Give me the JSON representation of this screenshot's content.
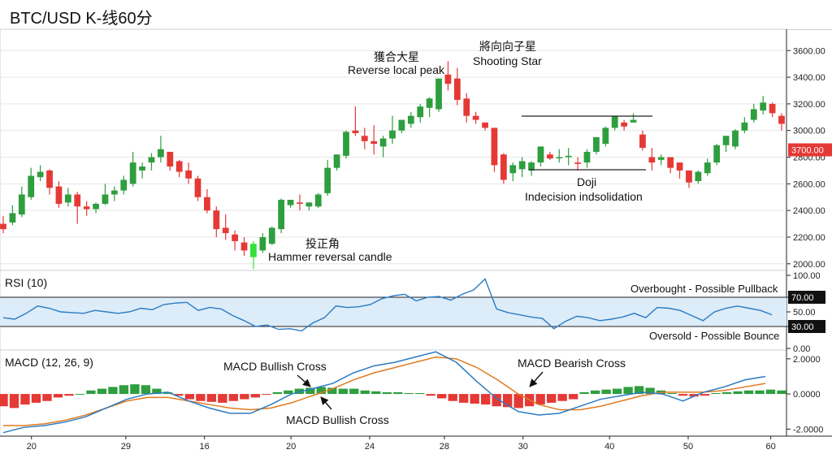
{
  "title": "BTC/USD K-线60分",
  "colors": {
    "up": "#2e9e3e",
    "down": "#e53935",
    "hammer": "#33e03a",
    "rsi_line": "#2b7bc2",
    "rsi_zone": "#dcecf9",
    "macd_line": "#2b7bc2",
    "signal_line": "#e07a1f",
    "grid": "#e6e6e6",
    "axis": "#222222",
    "badge": "#e53935"
  },
  "chart_data": [
    {
      "type": "candlestick",
      "title": "BTC/USD K-线60分",
      "y_ticks": [
        "2000.00",
        "2200.00",
        "2400.00",
        "2600.00",
        "2800.00",
        "3000.00",
        "3200.00",
        "3400.00",
        "3600.00"
      ],
      "ylim": [
        1950,
        3760
      ],
      "last_price_label": "3700.00",
      "candles": [
        [
          2300,
          2360,
          2260,
          2230
        ],
        [
          2310,
          2440,
          2380,
          2290
        ],
        [
          2370,
          2580,
          2520,
          2350
        ],
        [
          2500,
          2720,
          2660,
          2480
        ],
        [
          2650,
          2740,
          2690,
          2620
        ],
        [
          2700,
          2710,
          2570,
          2520
        ],
        [
          2580,
          2620,
          2450,
          2420
        ],
        [
          2460,
          2570,
          2520,
          2430
        ],
        [
          2520,
          2540,
          2430,
          2300
        ],
        [
          2430,
          2470,
          2410,
          2360
        ],
        [
          2410,
          2460,
          2450,
          2380
        ],
        [
          2450,
          2600,
          2520,
          2440
        ],
        [
          2520,
          2580,
          2550,
          2470
        ],
        [
          2550,
          2660,
          2630,
          2520
        ],
        [
          2600,
          2840,
          2760,
          2580
        ],
        [
          2700,
          2760,
          2730,
          2640
        ],
        [
          2760,
          2830,
          2800,
          2700
        ],
        [
          2800,
          2960,
          2860,
          2760
        ],
        [
          2840,
          2830,
          2730,
          2700
        ],
        [
          2770,
          2780,
          2690,
          2650
        ],
        [
          2700,
          2760,
          2640,
          2600
        ],
        [
          2640,
          2660,
          2500,
          2470
        ],
        [
          2500,
          2560,
          2400,
          2380
        ],
        [
          2400,
          2430,
          2260,
          2200
        ],
        [
          2270,
          2370,
          2230,
          2180
        ],
        [
          2220,
          2250,
          2170,
          2100
        ],
        [
          2160,
          2200,
          2100,
          2060
        ],
        [
          2050,
          2170,
          2150,
          1960
        ],
        [
          2100,
          2230,
          2200,
          2080
        ],
        [
          2150,
          2280,
          2270,
          2140
        ],
        [
          2260,
          2490,
          2480,
          2230
        ],
        [
          2440,
          2470,
          2480,
          2420
        ],
        [
          2460,
          2520,
          2450,
          2400
        ],
        [
          2430,
          2460,
          2460,
          2400
        ],
        [
          2430,
          2530,
          2520,
          2420
        ],
        [
          2530,
          2780,
          2720,
          2510
        ],
        [
          2720,
          2820,
          2820,
          2700
        ],
        [
          2810,
          3000,
          2990,
          2790
        ],
        [
          3000,
          3180,
          2980,
          2960
        ],
        [
          2960,
          3020,
          2920,
          2860
        ],
        [
          2920,
          3040,
          2900,
          2820
        ],
        [
          2880,
          2960,
          2940,
          2800
        ],
        [
          2940,
          3110,
          3000,
          2900
        ],
        [
          3000,
          3060,
          3080,
          2980
        ],
        [
          3050,
          3140,
          3110,
          3020
        ],
        [
          3100,
          3200,
          3180,
          3060
        ],
        [
          3170,
          3250,
          3240,
          3100
        ],
        [
          3160,
          3390,
          3390,
          3140
        ],
        [
          3420,
          3520,
          3350,
          3300
        ],
        [
          3390,
          3470,
          3230,
          3190
        ],
        [
          3240,
          3280,
          3110,
          3060
        ],
        [
          3110,
          3140,
          3080,
          3050
        ],
        [
          3060,
          3050,
          3020,
          3000
        ],
        [
          3020,
          2900,
          2740,
          2690
        ],
        [
          2820,
          2830,
          2630,
          2600
        ],
        [
          2680,
          2760,
          2740,
          2620
        ],
        [
          2710,
          2800,
          2770,
          2650
        ],
        [
          2700,
          2770,
          2760,
          2660
        ],
        [
          2760,
          2870,
          2880,
          2730
        ],
        [
          2820,
          2840,
          2790,
          2780
        ],
        [
          2800,
          2860,
          2800,
          2760
        ],
        [
          2800,
          2870,
          2810,
          2740
        ],
        [
          2760,
          2800,
          2750,
          2700
        ],
        [
          2760,
          2860,
          2840,
          2720
        ],
        [
          2840,
          2940,
          2950,
          2820
        ],
        [
          2900,
          3030,
          3020,
          2880
        ],
        [
          3020,
          3110,
          3110,
          3000
        ],
        [
          3060,
          3080,
          3030,
          3000
        ],
        [
          3060,
          3130,
          3080,
          3060
        ],
        [
          2970,
          3000,
          2870,
          2850
        ],
        [
          2800,
          2870,
          2760,
          2700
        ],
        [
          2780,
          2820,
          2800,
          2740
        ],
        [
          2800,
          2780,
          2720,
          2680
        ],
        [
          2760,
          2720,
          2700,
          2640
        ],
        [
          2700,
          2700,
          2610,
          2570
        ],
        [
          2620,
          2700,
          2690,
          2600
        ],
        [
          2680,
          2790,
          2760,
          2660
        ],
        [
          2760,
          2900,
          2890,
          2740
        ],
        [
          2890,
          2960,
          2960,
          2840
        ],
        [
          2880,
          3010,
          3000,
          2860
        ],
        [
          3000,
          3100,
          3060,
          2980
        ],
        [
          3080,
          3200,
          3160,
          3060
        ],
        [
          3150,
          3260,
          3210,
          3120
        ],
        [
          3200,
          3210,
          3130,
          3100
        ],
        [
          3110,
          3130,
          3050,
          3000
        ]
      ],
      "annotations": {
        "shooting_star_zh": "將向向子星",
        "shooting_star_en": "Shooting Star",
        "peak_zh": "獲合大星",
        "peak_en": "Reverse local peak",
        "hammer_zh": "投正角",
        "hammer_en": "Hammer reversal candle",
        "doji": "Doji",
        "consolidation": "Indecision indsolidation"
      }
    },
    {
      "type": "line",
      "title": "RSI (10)",
      "y_ticks": [
        "0.00",
        "30.00",
        "50.00",
        "70.00",
        "100.00"
      ],
      "ylim": [
        0,
        100
      ],
      "overbought": 70,
      "oversold": 30,
      "overbought_label": "70.00",
      "oversold_label": "30.00",
      "overbought_text": "Overbought - Possible Pullback",
      "oversold_text": "Oversold - Possible Bounce",
      "values": [
        42,
        40,
        48,
        58,
        55,
        50,
        49,
        48,
        52,
        50,
        48,
        50,
        55,
        53,
        60,
        62,
        63,
        52,
        56,
        54,
        45,
        38,
        30,
        32,
        26,
        27,
        24,
        35,
        42,
        58,
        56,
        57,
        60,
        68,
        72,
        74,
        65,
        70,
        71,
        66,
        74,
        80,
        95,
        54,
        49,
        46,
        43,
        41,
        27,
        37,
        44,
        42,
        38,
        40,
        43,
        48,
        42,
        56,
        55,
        52,
        45,
        38,
        50,
        55,
        58,
        55,
        52,
        46
      ]
    },
    {
      "type": "line",
      "title": "MACD (12, 26, 9)",
      "y_ticks": [
        "-2.0000",
        "0.0000",
        "2.0000"
      ],
      "ylim": [
        -2.4,
        2.5
      ],
      "macd": [
        -2.2,
        -1.9,
        -1.8,
        -1.6,
        -1.3,
        -0.8,
        -0.3,
        0.0,
        0.1,
        -0.4,
        -0.8,
        -1.1,
        -1.1,
        -0.6,
        0.0,
        0.3,
        0.6,
        1.2,
        1.6,
        1.8,
        2.1,
        2.4,
        1.8,
        0.7,
        -0.3,
        -1.0,
        -1.2,
        -1.1,
        -0.7,
        -0.3,
        -0.1,
        0.1,
        0.0,
        -0.4,
        0.1,
        0.4,
        0.8,
        1.0
      ],
      "signal": [
        -1.8,
        -1.8,
        -1.7,
        -1.5,
        -1.2,
        -0.8,
        -0.4,
        -0.2,
        -0.2,
        -0.4,
        -0.6,
        -0.8,
        -0.9,
        -0.8,
        -0.5,
        -0.1,
        0.3,
        0.8,
        1.2,
        1.5,
        1.8,
        2.1,
        2.0,
        1.5,
        0.8,
        0.0,
        -0.6,
        -0.9,
        -0.9,
        -0.7,
        -0.4,
        -0.1,
        0.1,
        0.1,
        0.1,
        0.2,
        0.4,
        0.6
      ],
      "histogram": [
        -0.7,
        -0.8,
        -0.6,
        -0.5,
        -0.4,
        -0.2,
        -0.1,
        0.0,
        0.2,
        0.3,
        0.4,
        0.5,
        0.55,
        0.5,
        0.3,
        0.1,
        -0.1,
        -0.3,
        -0.4,
        -0.45,
        -0.5,
        -0.4,
        -0.3,
        -0.2,
        -0.05,
        0.1,
        0.2,
        0.3,
        0.35,
        0.4,
        0.35,
        0.3,
        0.3,
        0.2,
        0.15,
        0.1,
        0.1,
        0.05,
        0.05,
        -0.1,
        -0.25,
        -0.4,
        -0.5,
        -0.55,
        -0.6,
        -0.7,
        -0.75,
        -0.8,
        -0.7,
        -0.6,
        -0.5,
        -0.4,
        -0.3,
        0.1,
        0.2,
        0.25,
        0.3,
        0.4,
        0.45,
        0.35,
        0.2,
        0.05,
        -0.1,
        -0.15,
        -0.1,
        0.05,
        0.1,
        0.15,
        0.2,
        0.2,
        0.25,
        0.2
      ],
      "annotations": {
        "bull_cross_1": "MACD Bullish Cross",
        "bull_cross_2": "MACD Bullish Cross",
        "bear_cross": "MACD Bearish Cross"
      }
    }
  ],
  "x_axis": {
    "ticks": [
      {
        "label": "20",
        "pos": 0.04
      },
      {
        "label": "29",
        "pos": 0.16
      },
      {
        "label": "16",
        "pos": 0.26
      },
      {
        "label": "20",
        "pos": 0.37
      },
      {
        "label": "24",
        "pos": 0.47
      },
      {
        "label": "28",
        "pos": 0.565
      },
      {
        "label": "30",
        "pos": 0.665
      },
      {
        "label": "40",
        "pos": 0.775
      },
      {
        "label": "50",
        "pos": 0.875
      },
      {
        "label": "60",
        "pos": 0.98
      }
    ]
  }
}
